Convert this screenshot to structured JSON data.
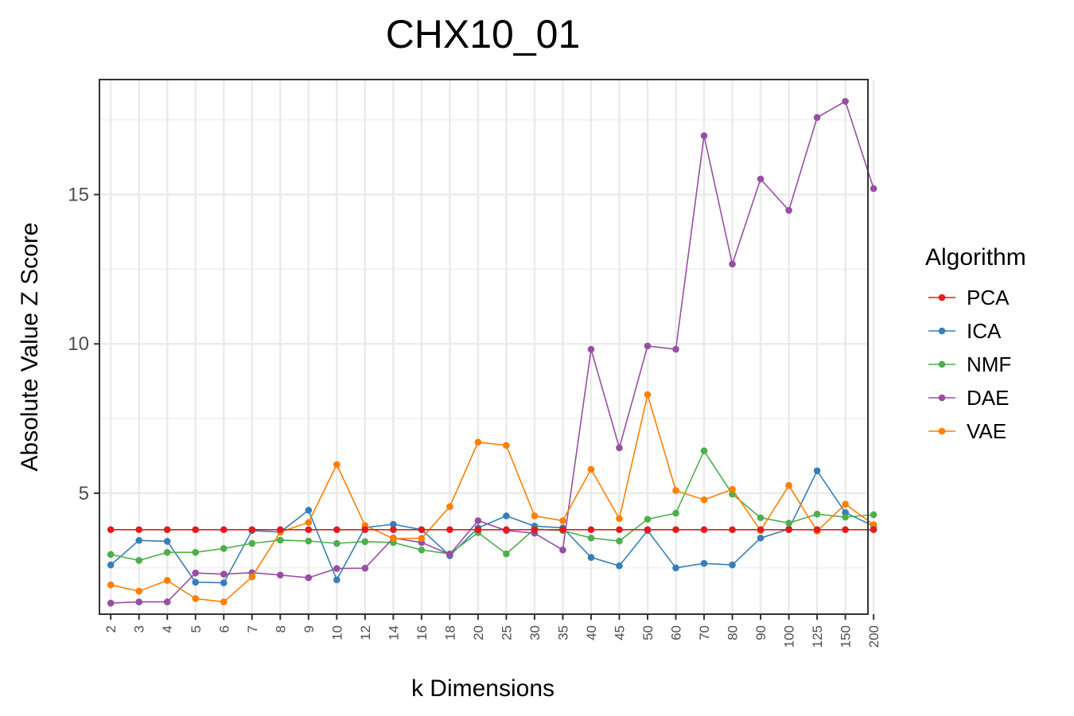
{
  "chart_data": {
    "type": "line",
    "title": "CHX10_01",
    "xlabel": "k Dimensions",
    "ylabel": "Absolute Value Z Score",
    "categories": [
      "2",
      "3",
      "4",
      "5",
      "6",
      "7",
      "8",
      "9",
      "10",
      "12",
      "14",
      "16",
      "18",
      "20",
      "25",
      "30",
      "35",
      "40",
      "45",
      "50",
      "60",
      "70",
      "80",
      "90",
      "100",
      "125",
      "150",
      "200"
    ],
    "ylim": [
      0.95,
      18.85
    ],
    "yticks": [
      "5",
      "10",
      "15"
    ],
    "grid": true,
    "legend_title": "Algorithm",
    "legend_position": "right",
    "series": [
      {
        "name": "PCA",
        "color": "#e41a1c",
        "values": [
          3.78,
          3.78,
          3.78,
          3.78,
          3.78,
          3.78,
          3.78,
          3.78,
          3.78,
          3.78,
          3.78,
          3.78,
          3.78,
          3.78,
          3.78,
          3.78,
          3.78,
          3.78,
          3.78,
          3.78,
          3.78,
          3.78,
          3.78,
          3.78,
          3.78,
          3.78,
          3.78,
          3.78
        ]
      },
      {
        "name": "ICA",
        "color": "#377eb8",
        "values": [
          2.6,
          3.42,
          3.39,
          2.02,
          2.0,
          3.75,
          3.7,
          4.43,
          2.1,
          3.85,
          3.96,
          3.78,
          2.91,
          3.84,
          4.24,
          3.9,
          3.84,
          2.85,
          2.57,
          3.75,
          2.5,
          2.65,
          2.6,
          3.5,
          3.8,
          5.75,
          4.35,
          3.9
        ]
      },
      {
        "name": "NMF",
        "color": "#4daf4a",
        "values": [
          2.95,
          2.75,
          3.02,
          3.02,
          3.15,
          3.32,
          3.43,
          3.4,
          3.32,
          3.38,
          3.35,
          3.1,
          2.97,
          3.68,
          2.97,
          3.8,
          3.75,
          3.5,
          3.4,
          4.13,
          4.33,
          6.42,
          4.97,
          4.18,
          4.0,
          4.3,
          4.2,
          4.28
        ]
      },
      {
        "name": "DAE",
        "color": "#984ea3",
        "values": [
          1.32,
          1.36,
          1.36,
          2.33,
          2.29,
          2.34,
          2.26,
          2.17,
          2.48,
          2.49,
          3.5,
          3.35,
          2.95,
          4.08,
          3.75,
          3.66,
          3.1,
          9.82,
          6.52,
          9.93,
          9.82,
          16.97,
          12.67,
          15.52,
          14.47,
          17.58,
          18.12,
          15.2
        ]
      },
      {
        "name": "VAE",
        "color": "#ff7f00",
        "values": [
          1.93,
          1.72,
          2.08,
          1.47,
          1.36,
          2.2,
          3.7,
          4.02,
          5.96,
          3.92,
          3.48,
          3.49,
          4.55,
          6.71,
          6.6,
          4.24,
          4.08,
          5.8,
          4.15,
          8.3,
          5.09,
          4.78,
          5.13,
          3.75,
          5.26,
          3.73,
          4.63,
          3.95
        ]
      }
    ]
  }
}
